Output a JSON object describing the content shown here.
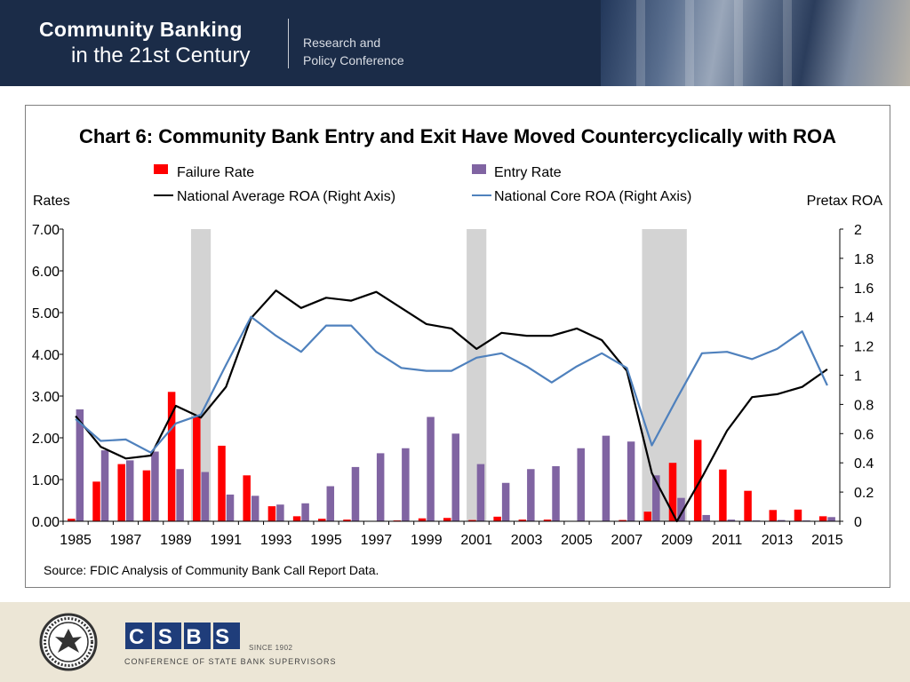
{
  "header": {
    "title_line1": "Community Banking",
    "title_line2": "in the 21st Century",
    "conf_line1": "Research and",
    "conf_line2": "Policy Conference"
  },
  "footer": {
    "csbs_acronym": "CSBS",
    "csbs_since": "SINCE 1902",
    "csbs_name": "CONFERENCE OF STATE BANK SUPERVISORS",
    "seal_text": "FEDERAL RESERVE SYSTEM"
  },
  "chart_data": {
    "type": "bar",
    "title": "Chart 6: Community Bank Entry and Exit Have Moved Countercyclically with ROA",
    "source": "Source: FDIC Analysis of Community Bank Call Report Data.",
    "ylabel_left": "Rates",
    "ylabel_right": "Pretax  ROA",
    "ylim_left": [
      0,
      7
    ],
    "ylim_right": [
      0,
      2
    ],
    "left_ticks": [
      "0.00",
      "1.00",
      "2.00",
      "3.00",
      "4.00",
      "5.00",
      "6.00",
      "7.00"
    ],
    "right_ticks": [
      "0",
      "0.2",
      "0.4",
      "0.6",
      "0.8",
      "1",
      "1.2",
      "1.4",
      "1.6",
      "1.8",
      "2"
    ],
    "x": [
      1985,
      1986,
      1987,
      1988,
      1989,
      1990,
      1991,
      1992,
      1993,
      1994,
      1995,
      1996,
      1997,
      1998,
      1999,
      2000,
      2001,
      2002,
      2003,
      2004,
      2005,
      2006,
      2007,
      2008,
      2009,
      2010,
      2011,
      2012,
      2013,
      2014,
      2015
    ],
    "x_tick_labels": [
      "1985",
      "1987",
      "1989",
      "1991",
      "1993",
      "1995",
      "1997",
      "1999",
      "2001",
      "2003",
      "2005",
      "2007",
      "2009",
      "2011",
      "2013",
      "2015"
    ],
    "recession_shading": [
      1990,
      2001,
      [
        2008,
        2009
      ]
    ],
    "legend_position": "top",
    "series": [
      {
        "name": "Failure Rate",
        "kind": "bar",
        "axis": "left",
        "color": "#ff0000",
        "values": [
          0.06,
          0.95,
          1.37,
          1.22,
          3.1,
          2.5,
          1.81,
          1.1,
          0.36,
          0.12,
          0.06,
          0.04,
          0.01,
          0.02,
          0.07,
          0.08,
          0.03,
          0.11,
          0.04,
          0.04,
          0.0,
          0.0,
          0.03,
          0.23,
          1.4,
          1.95,
          1.24,
          0.73,
          0.27,
          0.28,
          0.12
        ]
      },
      {
        "name": "Entry Rate",
        "kind": "bar",
        "axis": "left",
        "color": "#8064a2",
        "values": [
          2.68,
          1.7,
          1.46,
          1.67,
          1.25,
          1.18,
          0.64,
          0.61,
          0.4,
          0.43,
          0.84,
          1.3,
          1.63,
          1.75,
          2.5,
          2.1,
          1.37,
          0.92,
          1.25,
          1.32,
          1.75,
          2.05,
          1.91,
          1.1,
          0.56,
          0.15,
          0.04,
          0.02,
          0.03,
          0.02,
          0.1
        ]
      },
      {
        "name": "National Average ROA (Right Axis)",
        "kind": "line",
        "axis": "right",
        "color": "#000000",
        "values": [
          0.72,
          0.51,
          0.43,
          0.45,
          0.79,
          0.71,
          0.92,
          1.39,
          1.58,
          1.46,
          1.53,
          1.51,
          1.57,
          1.46,
          1.35,
          1.32,
          1.18,
          1.29,
          1.27,
          1.27,
          1.32,
          1.24,
          1.03,
          0.33,
          0.0,
          0.3,
          0.62,
          0.85,
          0.87,
          0.92,
          1.04
        ]
      },
      {
        "name": "National Core ROA (Right Axis)",
        "kind": "line",
        "axis": "right",
        "color": "#4f81bd",
        "values": [
          0.7,
          0.55,
          0.56,
          0.47,
          0.67,
          0.73,
          1.07,
          1.4,
          1.27,
          1.16,
          1.34,
          1.34,
          1.16,
          1.05,
          1.03,
          1.03,
          1.12,
          1.15,
          1.06,
          0.95,
          1.06,
          1.15,
          1.05,
          0.52,
          0.84,
          1.15,
          1.16,
          1.11,
          1.18,
          1.3,
          0.93
        ]
      }
    ]
  }
}
